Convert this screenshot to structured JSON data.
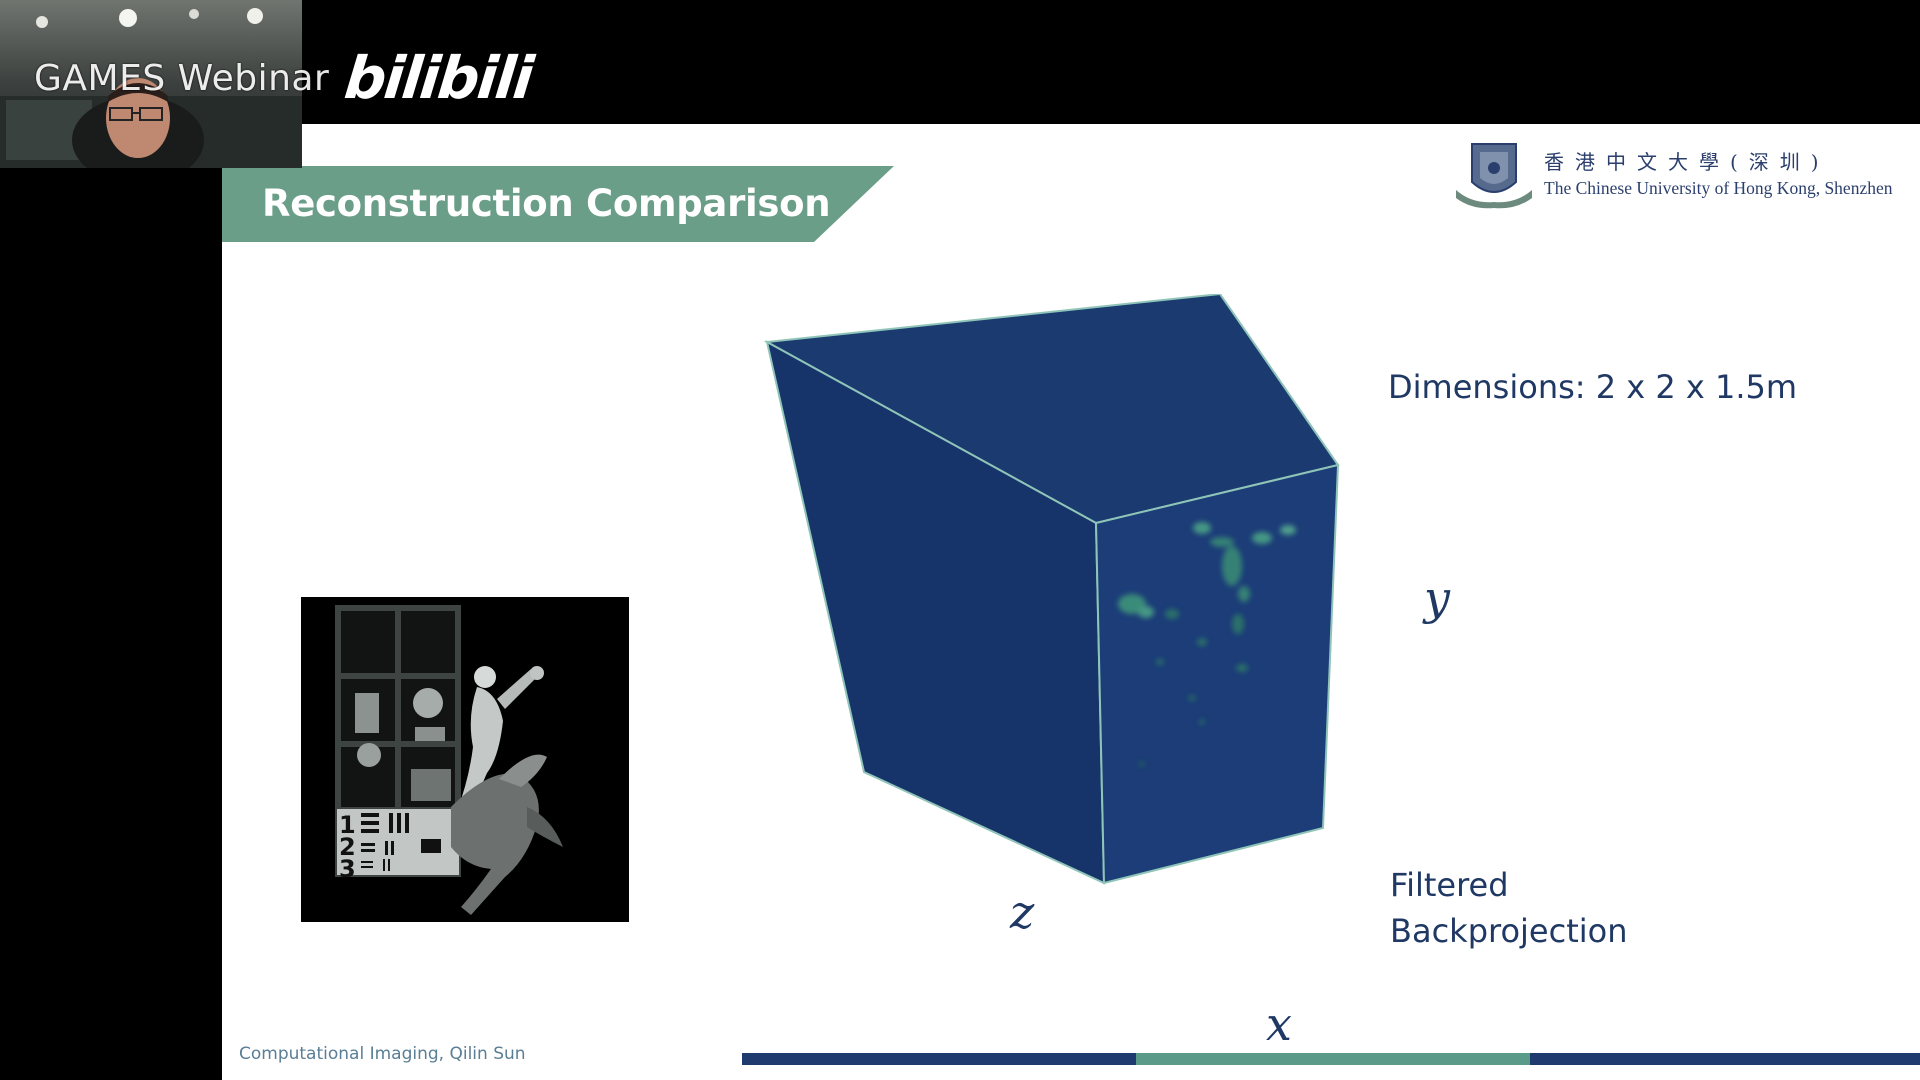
{
  "overlay": {
    "watermark_text": "GAMES Webinar",
    "platform_logo": "bilibili"
  },
  "slide": {
    "title": "Reconstruction Comparison",
    "university": {
      "name_zh": "香港中文大學(深圳)",
      "name_en": "The Chinese University of Hong Kong, Shenzhen"
    },
    "dimensions_label": "Dimensions: 2 x 2 x 1.5m",
    "method_label_line1": "Filtered",
    "method_label_line2": "Backprojection",
    "axis_labels": {
      "x": "x",
      "y": "y",
      "z": "z"
    },
    "footer": "Computational Imaging, Qilin Sun",
    "scene_chart_digits": [
      "1",
      "2",
      "3"
    ]
  },
  "colors": {
    "banner": "#6b9e88",
    "text": "#1f3864",
    "cube_face": "#1c3a72",
    "cube_edge": "#8fc4b8",
    "progress_dark": "#1f3a6e",
    "progress_accent": "#5a9a88"
  },
  "icons": [
    "presenter-video-icon",
    "cuhk-crest-icon"
  ]
}
